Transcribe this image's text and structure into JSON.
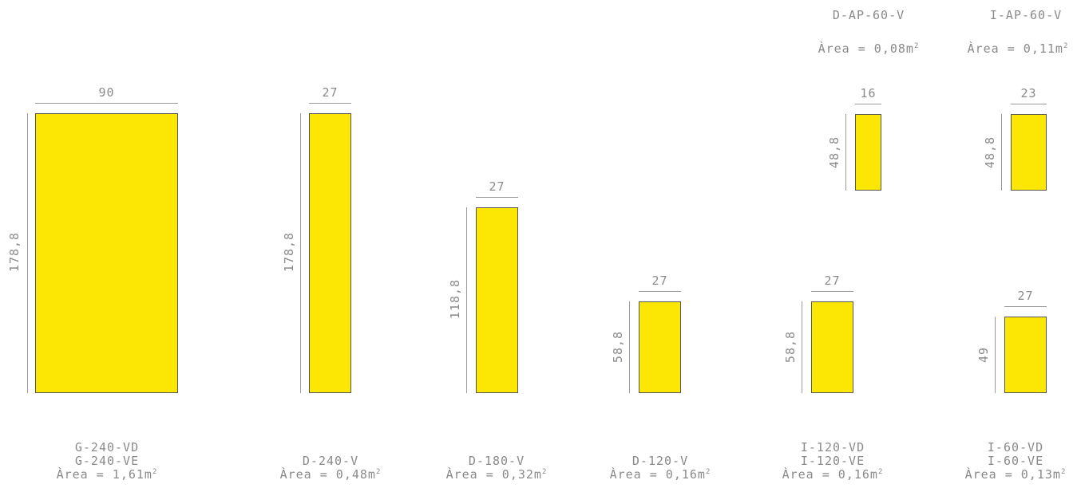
{
  "colors": {
    "panel_fill": "#fbe604",
    "panel_border": "#555555",
    "dimension_text": "#8a8a8a"
  },
  "panels": [
    {
      "width": "90",
      "height": "178,8",
      "names": [
        "G-240-VD",
        "G-240-VE"
      ],
      "area": "Àrea = 1,61m",
      "area_unit_exp": "2"
    },
    {
      "width": "27",
      "height": "178,8",
      "names": [
        "D-240-V"
      ],
      "area": "Àrea = 0,48m",
      "area_unit_exp": "2"
    },
    {
      "width": "27",
      "height": "118,8",
      "names": [
        "D-180-V"
      ],
      "area": "Àrea = 0,32m",
      "area_unit_exp": "2"
    },
    {
      "width": "27",
      "height": "58,8",
      "names": [
        "D-120-V"
      ],
      "area": "Àrea = 0,16m",
      "area_unit_exp": "2"
    },
    {
      "width": "27",
      "height": "58,8",
      "names": [
        "I-120-VD",
        "I-120-VE"
      ],
      "area": "Àrea = 0,16m",
      "area_unit_exp": "2"
    },
    {
      "width": "27",
      "height": "49",
      "names": [
        "I-60-VD",
        "I-60-VE"
      ],
      "area": "Àrea = 0,13m",
      "area_unit_exp": "2"
    },
    {
      "width": "16",
      "height": "48,8",
      "names": [
        "D-AP-60-V"
      ],
      "area": "Àrea = 0,08m",
      "area_unit_exp": "2"
    },
    {
      "width": "23",
      "height": "48,8",
      "names": [
        "I-AP-60-V"
      ],
      "area": "Àrea = 0,11m",
      "area_unit_exp": "2"
    }
  ]
}
